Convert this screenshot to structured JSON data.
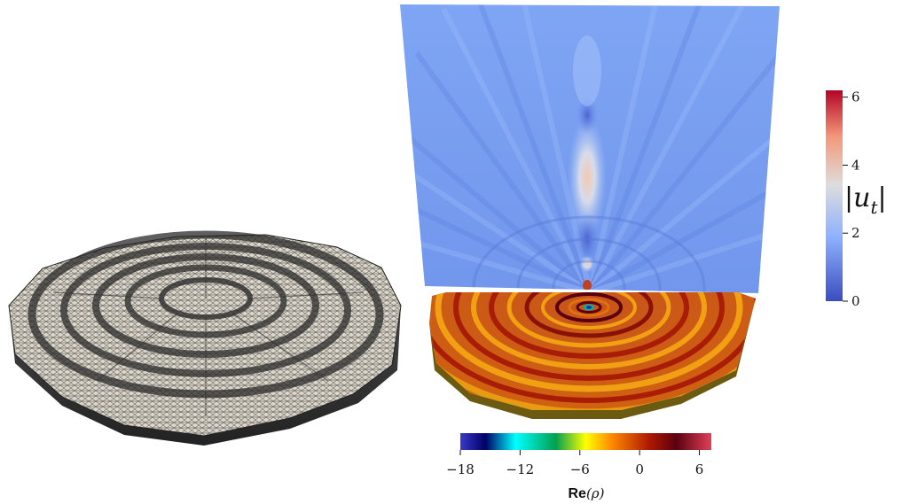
{
  "figure": {
    "left_panel": {
      "content": "triangulated mesh of a concentrically corrugated disc"
    },
    "right_panel": {
      "top_field": {
        "content": "vertical slice of |u_t|"
      },
      "bottom_field": {
        "content": "Re(rho) on the disc surface"
      }
    }
  },
  "colorbar_ut": {
    "label_main": "u",
    "label_sub": "t",
    "ticks": [
      {
        "value": 0,
        "label": "0"
      },
      {
        "value": 2,
        "label": "2"
      },
      {
        "value": 4,
        "label": "4"
      },
      {
        "value": 6,
        "label": "6"
      }
    ],
    "range": [
      0,
      6.2
    ],
    "colormap": [
      "#3b4cc0",
      "#8db0fe",
      "#dddddd",
      "#f4987a",
      "#b40426"
    ]
  },
  "colorbar_re": {
    "label_prefix": "Re",
    "label_symbol": "(ρ)",
    "ticks": [
      {
        "value": -18,
        "label": "−18"
      },
      {
        "value": -12,
        "label": "−12"
      },
      {
        "value": -6,
        "label": "−6"
      },
      {
        "value": 0,
        "label": "0"
      },
      {
        "value": 6,
        "label": "6"
      }
    ],
    "range": [
      -18,
      7.2
    ],
    "colormap": [
      "#2b2bb0",
      "#000066",
      "#00ffff",
      "#00a050",
      "#ffff00",
      "#ff8000",
      "#a01000",
      "#5a0010",
      "#e03050"
    ]
  }
}
